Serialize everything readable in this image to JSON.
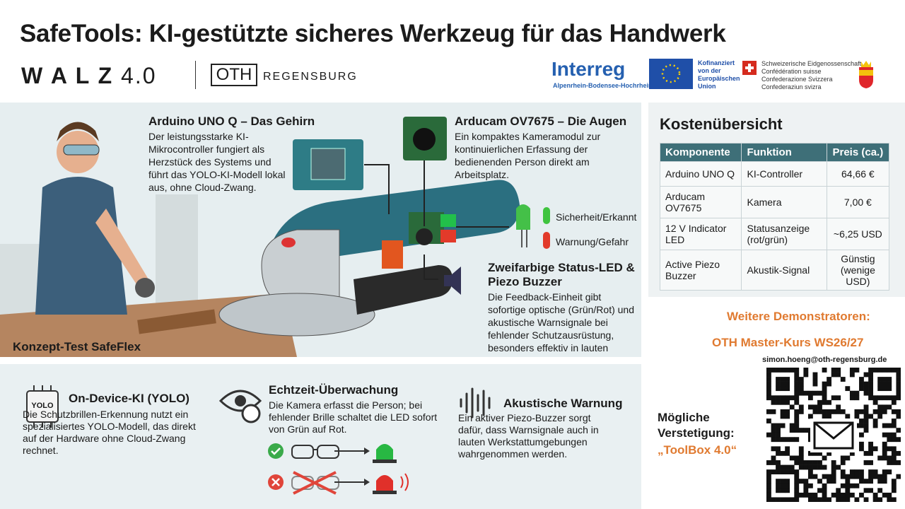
{
  "header": {
    "title": "SafeTools: KI-gestützte sicheres Werkzeug für das Handwerk",
    "logos": {
      "walz": "W A L Z",
      "walz_version": "4.0",
      "oth": "OTH",
      "regensburg": "REGENSBURG",
      "interreg": "Interreg",
      "interreg_region": "Alpenrhein-Bodensee-Hochrhein",
      "eu": "Kofinanziert von der Europäischen Union",
      "swiss": [
        "Schweizerische Eidgenossenschaft",
        "Confédération suisse",
        "Confederazione Svizzera",
        "Confederaziun svizra"
      ]
    }
  },
  "concept": {
    "arduino": {
      "title": "Arduino UNO Q – Das Gehirn",
      "text": "Der leistungsstarke KI-Mikrocontroller fungiert als Herzstück des Systems und führt das YOLO-KI-Modell lokal aus, ohne Cloud-Zwang."
    },
    "camera": {
      "title": "Arducam OV7675 – Die Augen",
      "text": "Ein kompaktes Kameramodul zur kontinuierlichen Erfassung der bedienenden Person direkt am Arbeitsplatz."
    },
    "led_green": "Sicherheit/Erkannt",
    "led_red": "Warnung/Gefahr",
    "feedback": {
      "title": "Zweifarbige Status-LED & Piezo Buzzer",
      "text": "Die Feedback-Einheit gibt sofortige optische (Grün/Rot) und akustische Warnsignale bei fehlender Schutzausrüstung, besonders effektiv in lauten"
    },
    "caption": "Konzept-Test SafeFlex"
  },
  "costs": {
    "title": "Kostenübersicht",
    "columns": [
      "Komponente",
      "Funktion",
      "Preis (ca.)"
    ],
    "rows": [
      [
        "Arduino UNO Q",
        "KI-Controller",
        "64,66 €"
      ],
      [
        "Arducam OV7675",
        "Kamera",
        "7,00 €"
      ],
      [
        "12 V Indicator LED",
        "Statusanzeige (rot/grün)",
        "~6,25 USD"
      ],
      [
        "Active Piezo Buzzer",
        "Akustik-Signal",
        "Günstig (wenige USD)"
      ]
    ]
  },
  "outlook": {
    "demos": "Weitere Demonstratoren:",
    "course": "OTH Master-Kurs WS26/27",
    "email": "simon.hoeng@oth-regensburg.de",
    "continuation": "Mögliche Verstetigung:",
    "toolbox": "„ToolBox 4.0“"
  },
  "features": [
    {
      "icon_label": "YOLO",
      "title": "On-Device-KI (YOLO)",
      "text": "Die Schutzbrillen-Erkennung nutzt ein spezialisiertes YOLO-Modell, das direkt auf der Hardware ohne Cloud-Zwang rechnet."
    },
    {
      "title": "Echtzeit-Überwachung",
      "text": "Die Kamera erfasst die Person; bei fehlender Brille schaltet die LED sofort von Grün auf Rot."
    },
    {
      "title": "Akustische Warnung",
      "text": "Ein aktiver Piezo-Buzzer sorgt dafür, dass Warnsignale auch in lauten Werkstattumgebungen wahrgenommen werden."
    }
  ]
}
